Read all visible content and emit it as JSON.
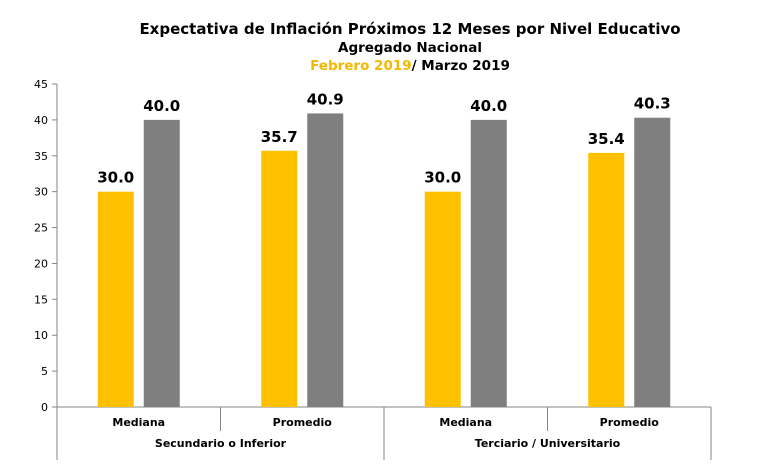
{
  "chart_data": {
    "type": "bar",
    "title": "Expectativa de Inflación Próximos 12 Meses por Nivel Educativo",
    "subtitle": "Agregado Nacional",
    "period_label_1": "Febrero 2019",
    "period_label_sep": "/ Marzo 2019",
    "groups": [
      "Secundario o Inferior",
      "Terciario / Universitario"
    ],
    "categories": [
      "Mediana",
      "Promedio",
      "Mediana",
      "Promedio"
    ],
    "series": [
      {
        "name": "Febrero 2019",
        "color": "#FFC000",
        "values": [
          30.0,
          35.7,
          30.0,
          35.4
        ]
      },
      {
        "name": "Marzo 2019",
        "color": "#7F7F7F",
        "values": [
          40.0,
          40.9,
          40.0,
          40.3
        ]
      }
    ],
    "yticks": [
      "0",
      "5",
      "10",
      "15",
      "20",
      "25",
      "30",
      "35",
      "40",
      "45"
    ],
    "ylim": [
      0,
      45
    ],
    "grid": false
  }
}
